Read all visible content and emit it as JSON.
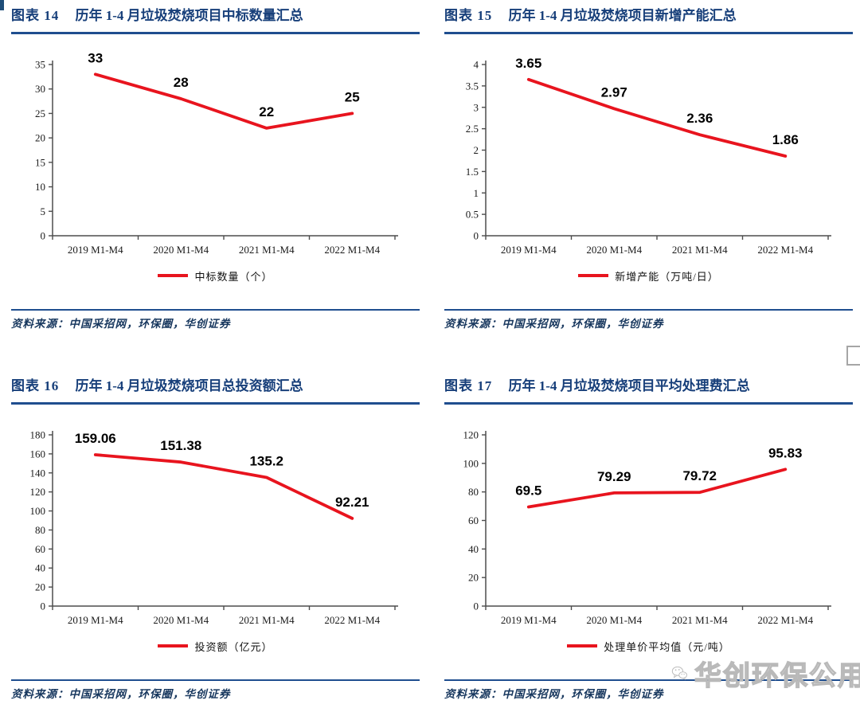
{
  "colors": {
    "title_blue": "#173F7A",
    "rule_blue": "#1F4E8F",
    "line_red": "#E8141E",
    "source_blue": "#17375E",
    "axis_gray": "#4D4D4D",
    "watermark_gray": "#B9B9B9"
  },
  "watermark": {
    "icon": "wechat-icon",
    "text": "华创环保公用"
  },
  "chart_data": [
    {
      "type": "line",
      "figure_label": "图表 14",
      "title": "历年 1-4 月垃圾焚烧项目中标数量汇总",
      "categories": [
        "2019 M1-M4",
        "2020 M1-M4",
        "2021 M1-M4",
        "2022 M1-M4"
      ],
      "values": [
        33,
        28,
        22,
        25
      ],
      "value_labels": [
        "33",
        "28",
        "22",
        "25"
      ],
      "legend": "中标数量（个）",
      "legend_position": "bottom",
      "xlabel": "",
      "ylabel": "",
      "ylim": [
        0,
        35
      ],
      "yticks": [
        0,
        5,
        10,
        15,
        20,
        25,
        30,
        35
      ],
      "ytick_labels": [
        "0",
        "5",
        "10",
        "15",
        "20",
        "25",
        "30",
        "35"
      ],
      "grid": false,
      "line_color": "#E8141E",
      "source": "资料来源：中国采招网，环保圈，华创证券"
    },
    {
      "type": "line",
      "figure_label": "图表 15",
      "title": "历年 1-4 月垃圾焚烧项目新增产能汇总",
      "categories": [
        "2019 M1-M4",
        "2020 M1-M4",
        "2021 M1-M4",
        "2022 M1-M4"
      ],
      "values": [
        3.65,
        2.97,
        2.36,
        1.86
      ],
      "value_labels": [
        "3.65",
        "2.97",
        "2.36",
        "1.86"
      ],
      "legend": "新增产能（万吨/日）",
      "legend_position": "bottom",
      "xlabel": "",
      "ylabel": "",
      "ylim": [
        0,
        4
      ],
      "yticks": [
        0,
        0.5,
        1,
        1.5,
        2,
        2.5,
        3,
        3.5,
        4
      ],
      "ytick_labels": [
        "0",
        "0.5",
        "1",
        "1.5",
        "2",
        "2.5",
        "3",
        "3.5",
        "4"
      ],
      "grid": false,
      "line_color": "#E8141E",
      "source": "资料来源：中国采招网，环保圈，华创证券"
    },
    {
      "type": "line",
      "figure_label": "图表 16",
      "title": "历年 1-4 月垃圾焚烧项目总投资额汇总",
      "categories": [
        "2019 M1-M4",
        "2020 M1-M4",
        "2021 M1-M4",
        "2022 M1-M4"
      ],
      "values": [
        159.06,
        151.38,
        135.2,
        92.21
      ],
      "value_labels": [
        "159.06",
        "151.38",
        "135.2",
        "92.21"
      ],
      "legend": "投资额（亿元）",
      "legend_position": "bottom",
      "xlabel": "",
      "ylabel": "",
      "ylim": [
        0,
        180
      ],
      "yticks": [
        0,
        20,
        40,
        60,
        80,
        100,
        120,
        140,
        160,
        180
      ],
      "ytick_labels": [
        "0",
        "20",
        "40",
        "60",
        "80",
        "100",
        "120",
        "140",
        "160",
        "180"
      ],
      "grid": false,
      "line_color": "#E8141E",
      "source": "资料来源：中国采招网，环保圈，华创证券"
    },
    {
      "type": "line",
      "figure_label": "图表 17",
      "title": "历年 1-4 月垃圾焚烧项目平均处理费汇总",
      "categories": [
        "2019 M1-M4",
        "2020 M1-M4",
        "2021 M1-M4",
        "2022 M1-M4"
      ],
      "values": [
        69.5,
        79.29,
        79.72,
        95.83
      ],
      "value_labels": [
        "69.5",
        "79.29",
        "79.72",
        "95.83"
      ],
      "legend": "处理单价平均值（元/吨）",
      "legend_position": "bottom",
      "xlabel": "",
      "ylabel": "",
      "ylim": [
        0,
        120
      ],
      "yticks": [
        0,
        20,
        40,
        60,
        80,
        100,
        120
      ],
      "ytick_labels": [
        "0",
        "20",
        "40",
        "60",
        "80",
        "100",
        "120"
      ],
      "grid": false,
      "line_color": "#E8141E",
      "source": "资料来源：中国采招网，环保圈，华创证券"
    }
  ]
}
